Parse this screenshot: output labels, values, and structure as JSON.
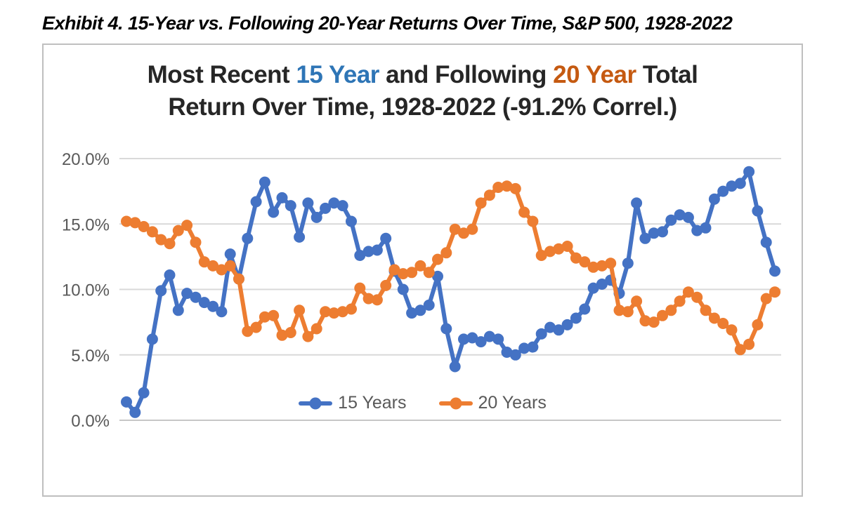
{
  "exhibit_caption": "Exhibit 4. 15-Year vs. Following 20-Year Returns Over Time, S&P 500, 1928-2022",
  "chart_title": {
    "part1": "Most Recent ",
    "part2": "15 Year",
    "part3": " and Following ",
    "part4": "20 Year",
    "part5": " Total",
    "line2": "Return Over Time, 1928-2022 (-91.2% Correl.)",
    "highlight_blue": "#2E75B6",
    "highlight_orange": "#C55A11",
    "text_color": "#262626"
  },
  "chart_data": {
    "type": "line",
    "title": "Most Recent 15 Year and Following 20 Year Total Return Over Time, 1928-2022 (-91.2% Correl.)",
    "correlation_label": "-91.2% Correl.",
    "x_axis": {
      "labels_visible": false,
      "implied_range": "1928-2022"
    },
    "y_axis": {
      "min": 0,
      "max": 20,
      "step": 5,
      "unit": "%",
      "tick_labels": [
        "20.0%",
        "15.0%",
        "10.0%",
        "5.0%",
        "0.0%"
      ],
      "tick_values": [
        20,
        15,
        10,
        5,
        0
      ],
      "label_color": "#595959"
    },
    "grid": true,
    "gridline_color": "#d9d9d9",
    "axisline_color": "#c6c6c6",
    "legend_position": "bottom-center-inside",
    "series": [
      {
        "name": "15 Years",
        "color": "#4472C4",
        "marker": "circle",
        "values": [
          1.4,
          0.6,
          2.1,
          6.2,
          9.9,
          11.1,
          8.4,
          9.7,
          9.4,
          9.0,
          8.7,
          8.3,
          12.7,
          10.8,
          13.9,
          16.7,
          18.2,
          15.9,
          17.0,
          16.4,
          14.0,
          16.6,
          15.5,
          16.2,
          16.6,
          16.4,
          15.2,
          12.6,
          12.9,
          13.0,
          13.9,
          11.4,
          10.0,
          8.2,
          8.4,
          8.8,
          11.0,
          7.0,
          4.1,
          6.2,
          6.3,
          6.0,
          6.4,
          6.2,
          5.2,
          5.0,
          5.5,
          5.6,
          6.6,
          7.1,
          6.9,
          7.3,
          7.8,
          8.5,
          10.1,
          10.4,
          10.7,
          9.7,
          12.0,
          16.6,
          13.9,
          14.3,
          14.4,
          15.3,
          15.7,
          15.5,
          14.5,
          14.7,
          16.9,
          17.5,
          17.9,
          18.1,
          19.0,
          16.0,
          13.6,
          11.4
        ]
      },
      {
        "name": "20 Years",
        "color": "#ED7D31",
        "marker": "circle",
        "values": [
          15.2,
          15.1,
          14.8,
          14.4,
          13.8,
          13.5,
          14.5,
          14.9,
          13.6,
          12.1,
          11.8,
          11.5,
          11.8,
          10.8,
          6.8,
          7.1,
          7.9,
          8.0,
          6.5,
          6.7,
          8.4,
          6.4,
          7.0,
          8.3,
          8.2,
          8.3,
          8.5,
          10.1,
          9.3,
          9.2,
          10.3,
          11.5,
          11.2,
          11.3,
          11.8,
          11.3,
          12.3,
          12.8,
          14.6,
          14.3,
          14.6,
          16.6,
          17.2,
          17.8,
          17.9,
          17.7,
          15.9,
          15.2,
          12.6,
          12.9,
          13.1,
          13.3,
          12.4,
          12.1,
          11.7,
          11.8,
          12.0,
          8.4,
          8.3,
          9.1,
          7.6,
          7.5,
          8.0,
          8.4,
          9.1,
          9.8,
          9.4,
          8.4,
          7.8,
          7.4,
          6.9,
          5.4,
          5.8,
          7.3,
          9.3,
          9.8
        ]
      }
    ]
  },
  "legend": {
    "items": [
      {
        "label": "15 Years",
        "color": "#4472C4"
      },
      {
        "label": "20 Years",
        "color": "#ED7D31"
      }
    ],
    "text_color": "#595959"
  }
}
